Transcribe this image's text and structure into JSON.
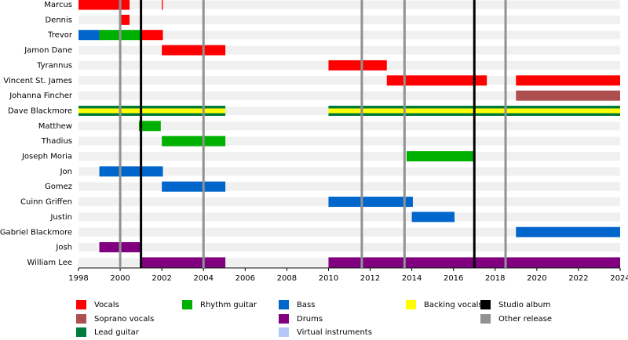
{
  "chart_data": {
    "type": "timeline",
    "members": [
      "Marcus",
      "Dennis",
      "Trevor",
      "Jamon Dane",
      "Tyrannus",
      "Vincent St. James",
      "Johanna Fincher",
      "Dave Blackmore",
      "Matthew",
      "Thadius",
      "Joseph Moria",
      "Jon",
      "Gomez",
      "Cuinn Griffen",
      "Justin",
      "Gabriel Blackmore",
      "Josh",
      "William Lee"
    ],
    "roles": [
      {
        "name": "Vocals",
        "color": "#ff0000"
      },
      {
        "name": "Soprano vocals",
        "color": "#ad4f4f"
      },
      {
        "name": "Lead guitar",
        "color": "#007a3d"
      },
      {
        "name": "Rhythm guitar",
        "color": "#00b000"
      },
      {
        "name": "Bass",
        "color": "#0066cc"
      },
      {
        "name": "Drums",
        "color": "#800080"
      },
      {
        "name": "Virtual instruments",
        "color": "#b4c6f5"
      },
      {
        "name": "Backing vocals",
        "color": "#ffff00"
      }
    ],
    "events": [
      {
        "name": "Studio album",
        "color": "#000000",
        "x": [
          2001,
          2017
        ]
      },
      {
        "name": "Other release",
        "color": "#919191",
        "x": [
          2000,
          2004,
          2011.6,
          2013.65,
          2018.5
        ]
      }
    ],
    "periods": [
      {
        "member": 0,
        "role": 0,
        "start": 1998,
        "end": 2000.45
      },
      {
        "member": 0,
        "role": 0,
        "start": 2002,
        "end": 2002.05
      },
      {
        "member": 1,
        "role": 0,
        "start": 2000,
        "end": 2000.45
      },
      {
        "member": 2,
        "role": 4,
        "start": 1998,
        "end": 1999
      },
      {
        "member": 2,
        "role": 3,
        "start": 1999,
        "end": 2001
      },
      {
        "member": 2,
        "role": 0,
        "start": 2001,
        "end": 2002.05
      },
      {
        "member": 3,
        "role": 0,
        "start": 2002,
        "end": 2005.05
      },
      {
        "member": 4,
        "role": 0,
        "start": 2010,
        "end": 2012.8
      },
      {
        "member": 5,
        "role": 0,
        "start": 2012.8,
        "end": 2017.6
      },
      {
        "member": 5,
        "role": 0,
        "start": 2019,
        "end": 2024
      },
      {
        "member": 6,
        "role": 1,
        "start": 2019,
        "end": 2024
      },
      {
        "member": 7,
        "role": 2,
        "start": 1998,
        "end": 2005.05
      },
      {
        "member": 7,
        "role": 7,
        "start": 1998,
        "end": 2005.05
      },
      {
        "member": 7,
        "role": 2,
        "start": 2010,
        "end": 2024
      },
      {
        "member": 7,
        "role": 7,
        "start": 2010,
        "end": 2024
      },
      {
        "member": 8,
        "role": 3,
        "start": 2000.9,
        "end": 2001.95
      },
      {
        "member": 9,
        "role": 3,
        "start": 2002,
        "end": 2005.05
      },
      {
        "member": 10,
        "role": 3,
        "start": 2013.75,
        "end": 2017.05
      },
      {
        "member": 11,
        "role": 4,
        "start": 1999,
        "end": 2002.05
      },
      {
        "member": 12,
        "role": 4,
        "start": 2002,
        "end": 2005.05
      },
      {
        "member": 13,
        "role": 4,
        "start": 2010,
        "end": 2014.05
      },
      {
        "member": 14,
        "role": 4,
        "start": 2014,
        "end": 2016.05
      },
      {
        "member": 15,
        "role": 4,
        "start": 2019,
        "end": 2024
      },
      {
        "member": 16,
        "role": 5,
        "start": 1999,
        "end": 2001
      },
      {
        "member": 17,
        "role": 5,
        "start": 2001,
        "end": 2005.05
      },
      {
        "member": 17,
        "role": 5,
        "start": 2010,
        "end": 2024
      }
    ],
    "xlim": [
      1998,
      2024
    ],
    "xticks": [
      1998,
      2000,
      2002,
      2004,
      2006,
      2008,
      2010,
      2012,
      2014,
      2016,
      2018,
      2020,
      2022,
      2024
    ]
  }
}
